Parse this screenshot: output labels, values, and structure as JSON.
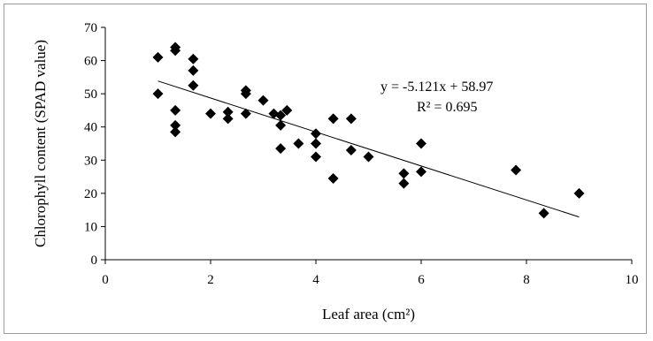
{
  "chart_data": {
    "type": "scatter",
    "xlabel": "Leaf area (cm²)",
    "ylabel": "Chlorophyll content (SPAD value)",
    "xlim": [
      0,
      10
    ],
    "ylim": [
      0,
      70
    ],
    "xticks": [
      0,
      2,
      4,
      6,
      8,
      10
    ],
    "yticks": [
      0,
      10,
      20,
      30,
      40,
      50,
      60,
      70
    ],
    "grid": false,
    "marker_color": "#000000",
    "trendline": {
      "type": "linear",
      "slope": -5.121,
      "intercept": 58.97,
      "x_range": [
        1,
        9
      ]
    },
    "annotations": {
      "equation": "y = -5.121x + 58.97",
      "r_squared": "R² = 0.695"
    },
    "series": [
      {
        "points": [
          [
            1.0,
            61
          ],
          [
            1.0,
            50
          ],
          [
            1.33,
            64
          ],
          [
            1.33,
            63
          ],
          [
            1.33,
            45
          ],
          [
            1.33,
            40.5
          ],
          [
            1.33,
            38.5
          ],
          [
            1.67,
            60.5
          ],
          [
            1.67,
            57
          ],
          [
            1.67,
            52.5
          ],
          [
            2.0,
            44
          ],
          [
            2.33,
            44.5
          ],
          [
            2.33,
            42.5
          ],
          [
            2.67,
            51
          ],
          [
            2.67,
            50
          ],
          [
            2.67,
            44
          ],
          [
            3.0,
            48
          ],
          [
            3.2,
            44
          ],
          [
            3.33,
            43.5
          ],
          [
            3.33,
            40.5
          ],
          [
            3.33,
            33.5
          ],
          [
            3.45,
            45
          ],
          [
            3.67,
            35
          ],
          [
            4.0,
            38
          ],
          [
            4.0,
            35
          ],
          [
            4.0,
            31
          ],
          [
            4.33,
            42.5
          ],
          [
            4.33,
            24.5
          ],
          [
            4.67,
            42.5
          ],
          [
            4.67,
            33
          ],
          [
            5.0,
            31
          ],
          [
            5.67,
            26
          ],
          [
            5.67,
            23
          ],
          [
            6.0,
            35
          ],
          [
            6.0,
            26.5
          ],
          [
            7.8,
            27
          ],
          [
            8.33,
            14
          ],
          [
            9.0,
            20
          ]
        ]
      }
    ]
  }
}
